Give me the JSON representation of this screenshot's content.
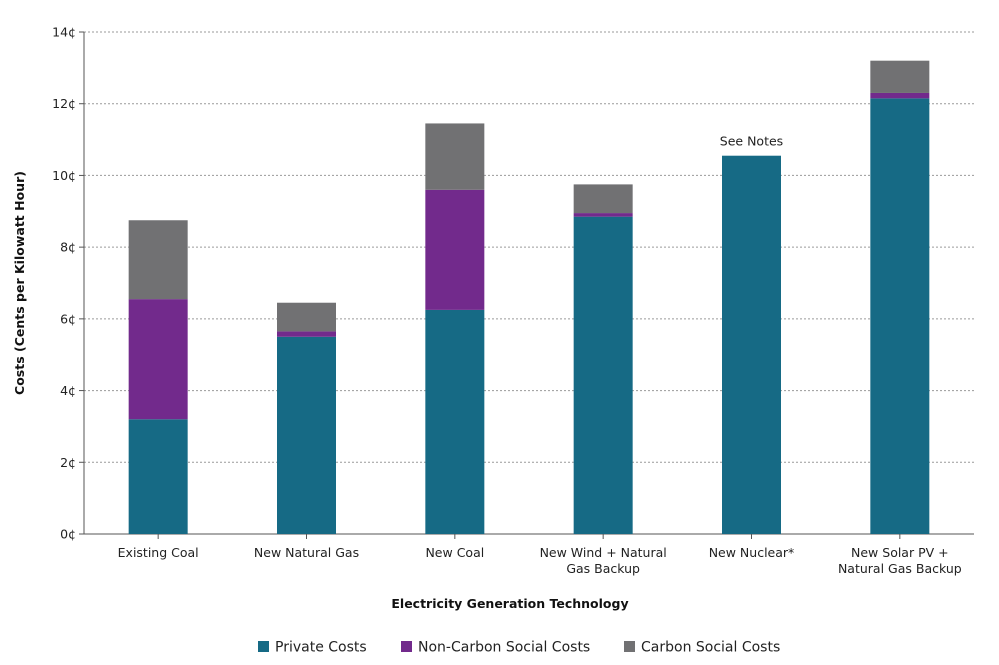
{
  "chart_data": {
    "type": "bar",
    "stacked": true,
    "categories": [
      [
        "Existing Coal"
      ],
      [
        "New Natural Gas"
      ],
      [
        "New Coal"
      ],
      [
        "New Wind + Natural",
        "Gas Backup"
      ],
      [
        "New Nuclear*"
      ],
      [
        "New Solar PV +",
        "Natural Gas Backup"
      ]
    ],
    "series": [
      {
        "name": "Private Costs",
        "color": "#166a85",
        "values": [
          3.2,
          5.5,
          6.25,
          8.85,
          10.55,
          12.15
        ]
      },
      {
        "name": "Non-Carbon Social Costs",
        "color": "#722a8c",
        "values": [
          3.35,
          0.15,
          3.35,
          0.1,
          0,
          0.15
        ]
      },
      {
        "name": "Carbon Social Costs",
        "color": "#717173",
        "values": [
          2.2,
          0.8,
          1.85,
          0.8,
          0,
          0.9
        ]
      }
    ],
    "xlabel": "Electricity Generation Technology",
    "ylabel": "Costs (Cents per Kilowatt Hour)",
    "ylim": [
      0,
      14
    ],
    "yticks": [
      0,
      2,
      4,
      6,
      8,
      10,
      12,
      14
    ],
    "ytick_suffix": "¢",
    "grid": true,
    "legend_position": "bottom",
    "annotations": [
      {
        "category_index": 4,
        "text": "See Notes"
      }
    ]
  }
}
